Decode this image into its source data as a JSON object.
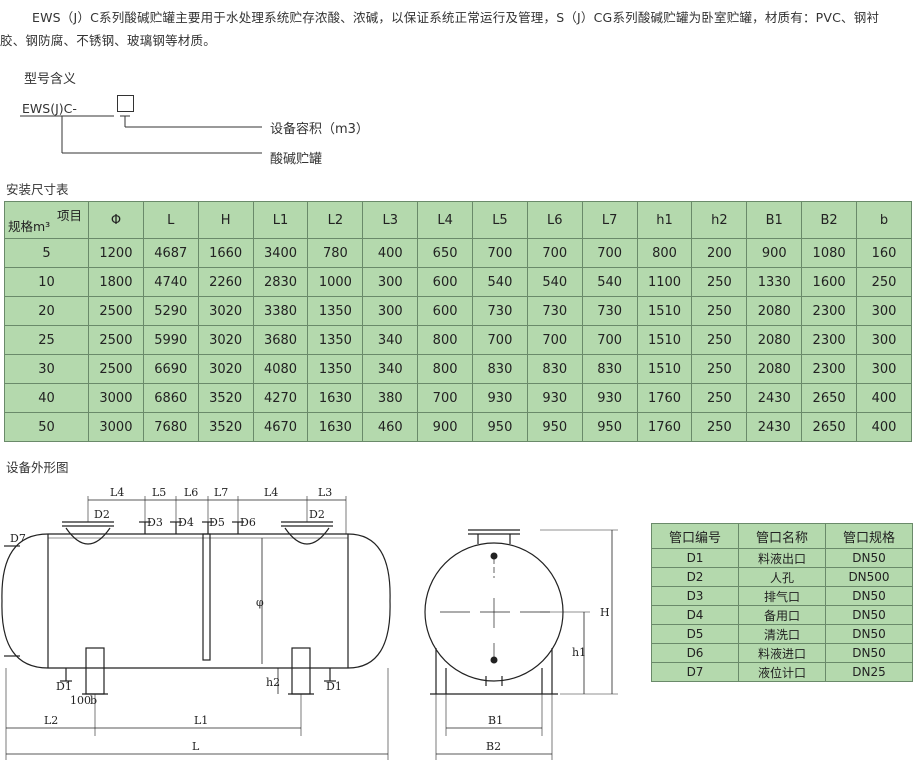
{
  "intro": {
    "line1": "EWS（J）C系列酸碱贮罐主要用于水处理系统贮存浓酸、浓碱，以保证系统正常运行及管理，S（J）CG系列酸碱贮罐为卧室贮罐，材质有：PVC、钢衬",
    "line2": "胶、钢防腐、不锈钢、玻璃钢等材质。"
  },
  "model": {
    "title": "型号含义",
    "code": "EWS(J)C-",
    "legend_capacity": "设备容积（m3）",
    "legend_tank": "酸碱贮罐"
  },
  "spec_table": {
    "title": "安装尺寸表",
    "corner_top": "项目",
    "corner_bottom": "规格m³",
    "headers": [
      "Φ",
      "L",
      "H",
      "L1",
      "L2",
      "L3",
      "L4",
      "L5",
      "L6",
      "L7",
      "h1",
      "h2",
      "B1",
      "B2",
      "b"
    ],
    "rows": [
      [
        "5",
        "1200",
        "4687",
        "1660",
        "3400",
        "780",
        "400",
        "650",
        "700",
        "700",
        "700",
        "800",
        "200",
        "900",
        "1080",
        "160"
      ],
      [
        "10",
        "1800",
        "4740",
        "2260",
        "2830",
        "1000",
        "300",
        "600",
        "540",
        "540",
        "540",
        "1100",
        "250",
        "1330",
        "1600",
        "250"
      ],
      [
        "20",
        "2500",
        "5290",
        "3020",
        "3380",
        "1350",
        "300",
        "600",
        "730",
        "730",
        "730",
        "1510",
        "250",
        "2080",
        "2300",
        "300"
      ],
      [
        "25",
        "2500",
        "5990",
        "3020",
        "3680",
        "1350",
        "340",
        "800",
        "700",
        "700",
        "700",
        "1510",
        "250",
        "2080",
        "2300",
        "300"
      ],
      [
        "30",
        "2500",
        "6690",
        "3020",
        "4080",
        "1350",
        "340",
        "800",
        "830",
        "830",
        "830",
        "1510",
        "250",
        "2080",
        "2300",
        "300"
      ],
      [
        "40",
        "3000",
        "6860",
        "3520",
        "4270",
        "1630",
        "380",
        "700",
        "930",
        "930",
        "930",
        "1760",
        "250",
        "2430",
        "2650",
        "400"
      ],
      [
        "50",
        "3000",
        "7680",
        "3520",
        "4670",
        "1630",
        "460",
        "900",
        "950",
        "950",
        "950",
        "1760",
        "250",
        "2430",
        "2650",
        "400"
      ]
    ]
  },
  "drawing": {
    "title": "设备外形图",
    "labels": {
      "L4a": "L4",
      "L5": "L5",
      "L6": "L6",
      "L7": "L7",
      "L4b": "L4",
      "L3": "L3",
      "D2a": "D2",
      "D3": "D3",
      "D4": "D4",
      "D5": "D5",
      "D6": "D6",
      "D2b": "D2",
      "D7": "D7",
      "phi": "φ",
      "h2": "h2",
      "D1a": "D1",
      "D1b": "D1",
      "b100": "100",
      "b": "b",
      "L2": "L2",
      "L1": "L1",
      "L": "L",
      "H": "H",
      "h1": "h1",
      "B1": "B1",
      "B2": "B2"
    }
  },
  "ports_table": {
    "headers": [
      "管口编号",
      "管口名称",
      "管口规格"
    ],
    "rows": [
      [
        "D1",
        "料液出口",
        "DN50"
      ],
      [
        "D2",
        "人孔",
        "DN500"
      ],
      [
        "D3",
        "排气口",
        "DN50"
      ],
      [
        "D4",
        "备用口",
        "DN50"
      ],
      [
        "D5",
        "清洗口",
        "DN50"
      ],
      [
        "D6",
        "料液进口",
        "DN50"
      ],
      [
        "D7",
        "液位计口",
        "DN25"
      ]
    ]
  }
}
